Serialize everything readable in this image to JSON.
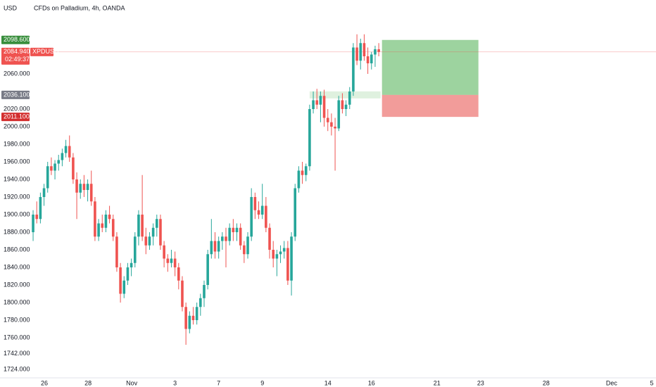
{
  "chart_data": {
    "type": "candlestick",
    "currency": "USD",
    "title": "CFDs on Palladium, 4h, OANDA",
    "symbol": "XPDUSD",
    "countdown": "02:49:37",
    "up_color": "#26a69a",
    "down_color": "#ef5350",
    "grid": false,
    "ylim": [
      1714.4,
      2144
    ],
    "yticks": [
      {
        "value": 2060,
        "label": "2060.000"
      },
      {
        "value": 2020,
        "label": "2020.000"
      },
      {
        "value": 2000,
        "label": "2000.000"
      },
      {
        "value": 1980,
        "label": "1980.000"
      },
      {
        "value": 1960,
        "label": "1960.000"
      },
      {
        "value": 1940,
        "label": "1940.000"
      },
      {
        "value": 1920,
        "label": "1920.000"
      },
      {
        "value": 1900,
        "label": "1900.000"
      },
      {
        "value": 1880,
        "label": "1880.000"
      },
      {
        "value": 1860,
        "label": "1860.000"
      },
      {
        "value": 1840,
        "label": "1840.000"
      },
      {
        "value": 1820,
        "label": "1820.000"
      },
      {
        "value": 1800,
        "label": "1800.000"
      },
      {
        "value": 1780,
        "label": "1780.000"
      },
      {
        "value": 1760,
        "label": "1760.000"
      },
      {
        "value": 1742,
        "label": "1742.000"
      },
      {
        "value": 1724,
        "label": "1724.000"
      }
    ],
    "xlim": [
      -9.1,
      171.2
    ],
    "xticks": [
      {
        "value": 3.1,
        "label": "26"
      },
      {
        "value": 15.1,
        "label": "28"
      },
      {
        "value": 27.1,
        "label": "Nov"
      },
      {
        "value": 39,
        "label": "3"
      },
      {
        "value": 51,
        "label": "7"
      },
      {
        "value": 63,
        "label": "9"
      },
      {
        "value": 81,
        "label": "14"
      },
      {
        "value": 93,
        "label": "16"
      },
      {
        "value": 111,
        "label": "21"
      },
      {
        "value": 123,
        "label": "23"
      },
      {
        "value": 141,
        "label": "28"
      },
      {
        "value": 159,
        "label": "Dec"
      },
      {
        "value": 171,
        "label": "5"
      }
    ],
    "open": [
      1880,
      1900,
      1895,
      1920,
      1930,
      1955,
      1950,
      1958,
      1962,
      1970,
      1978,
      1965,
      1940,
      1925,
      1935,
      1928,
      1935,
      1915,
      1875,
      1890,
      1885,
      1900,
      1895,
      1875,
      1840,
      1810,
      1825,
      1840,
      1845,
      1875,
      1900,
      1875,
      1865,
      1875,
      1885,
      1895,
      1865,
      1850,
      1845,
      1850,
      1840,
      1825,
      1795,
      1770,
      1785,
      1780,
      1795,
      1805,
      1820,
      1855,
      1870,
      1858,
      1870,
      1875,
      1870,
      1885,
      1880,
      1885,
      1865,
      1855,
      1875,
      1920,
      1905,
      1900,
      1910,
      1885,
      1860,
      1850,
      1855,
      1858,
      1862,
      1825,
      1875,
      1930,
      1950,
      1945,
      1955,
      2020,
      2030,
      2025,
      2035,
      2010,
      2005,
      2000,
      1998,
      2030,
      2020,
      2025,
      2040,
      2090,
      2075,
      2095,
      2080,
      2072,
      2082,
      2088
    ],
    "high": [
      1905,
      1915,
      1925,
      1935,
      1960,
      1965,
      1962,
      1968,
      1975,
      1985,
      1990,
      1970,
      1948,
      1940,
      1945,
      1940,
      1950,
      1920,
      1895,
      1900,
      1905,
      1910,
      1900,
      1880,
      1845,
      1830,
      1845,
      1850,
      1880,
      1905,
      1945,
      1885,
      1880,
      1890,
      1900,
      1900,
      1870,
      1855,
      1860,
      1858,
      1845,
      1830,
      1800,
      1790,
      1795,
      1800,
      1810,
      1825,
      1860,
      1895,
      1880,
      1875,
      1880,
      1885,
      1890,
      1895,
      1890,
      1890,
      1870,
      1880,
      1930,
      1925,
      1915,
      1935,
      1920,
      1890,
      1870,
      1860,
      1865,
      1870,
      1870,
      1880,
      1935,
      1955,
      1960,
      1958,
      2025,
      2040,
      2043,
      2040,
      2042,
      2020,
      2015,
      2010,
      2035,
      2038,
      2030,
      2045,
      2095,
      2105,
      2100,
      2105,
      2090,
      2085,
      2092,
      2095
    ],
    "low": [
      1870,
      1890,
      1890,
      1910,
      1925,
      1945,
      1940,
      1950,
      1955,
      1965,
      1960,
      1935,
      1895,
      1918,
      1920,
      1915,
      1910,
      1870,
      1870,
      1880,
      1880,
      1890,
      1870,
      1835,
      1800,
      1805,
      1820,
      1830,
      1840,
      1865,
      1870,
      1855,
      1860,
      1865,
      1875,
      1860,
      1840,
      1835,
      1840,
      1830,
      1815,
      1790,
      1752,
      1765,
      1775,
      1775,
      1785,
      1795,
      1815,
      1850,
      1850,
      1850,
      1860,
      1840,
      1865,
      1870,
      1870,
      1860,
      1845,
      1850,
      1870,
      1895,
      1895,
      1895,
      1880,
      1850,
      1840,
      1830,
      1845,
      1850,
      1820,
      1808,
      1870,
      1925,
      1935,
      1938,
      1950,
      2015,
      2020,
      2005,
      2000,
      1995,
      1990,
      1950,
      1995,
      2015,
      2012,
      2020,
      2035,
      2070,
      2065,
      2075,
      2060,
      2065,
      2068,
      2080
    ],
    "close": [
      1900,
      1895,
      1920,
      1930,
      1955,
      1950,
      1958,
      1962,
      1970,
      1978,
      1965,
      1940,
      1925,
      1935,
      1928,
      1935,
      1915,
      1875,
      1890,
      1885,
      1900,
      1895,
      1875,
      1840,
      1810,
      1825,
      1840,
      1845,
      1875,
      1900,
      1875,
      1865,
      1875,
      1885,
      1895,
      1865,
      1850,
      1845,
      1850,
      1840,
      1825,
      1795,
      1770,
      1785,
      1780,
      1795,
      1805,
      1820,
      1855,
      1870,
      1858,
      1870,
      1875,
      1870,
      1885,
      1880,
      1885,
      1865,
      1855,
      1875,
      1920,
      1905,
      1900,
      1910,
      1885,
      1860,
      1850,
      1855,
      1858,
      1862,
      1825,
      1875,
      1930,
      1950,
      1945,
      1955,
      2020,
      2030,
      2025,
      2035,
      2010,
      2005,
      2000,
      1998,
      2030,
      2020,
      2025,
      2040,
      2090,
      2075,
      2095,
      2080,
      2072,
      2082,
      2088,
      2084.94
    ],
    "last_price": {
      "value": 2084.94,
      "label": "2084.940"
    },
    "position": {
      "target": {
        "value": 2098.6,
        "label": "2098.600",
        "color": "#388e3c"
      },
      "entry": {
        "value": 2036.1,
        "label": "2036.100",
        "color": "#787b86"
      },
      "stop": {
        "value": 2011.1,
        "label": "2011.100",
        "color": "#d32f2f"
      }
    }
  }
}
